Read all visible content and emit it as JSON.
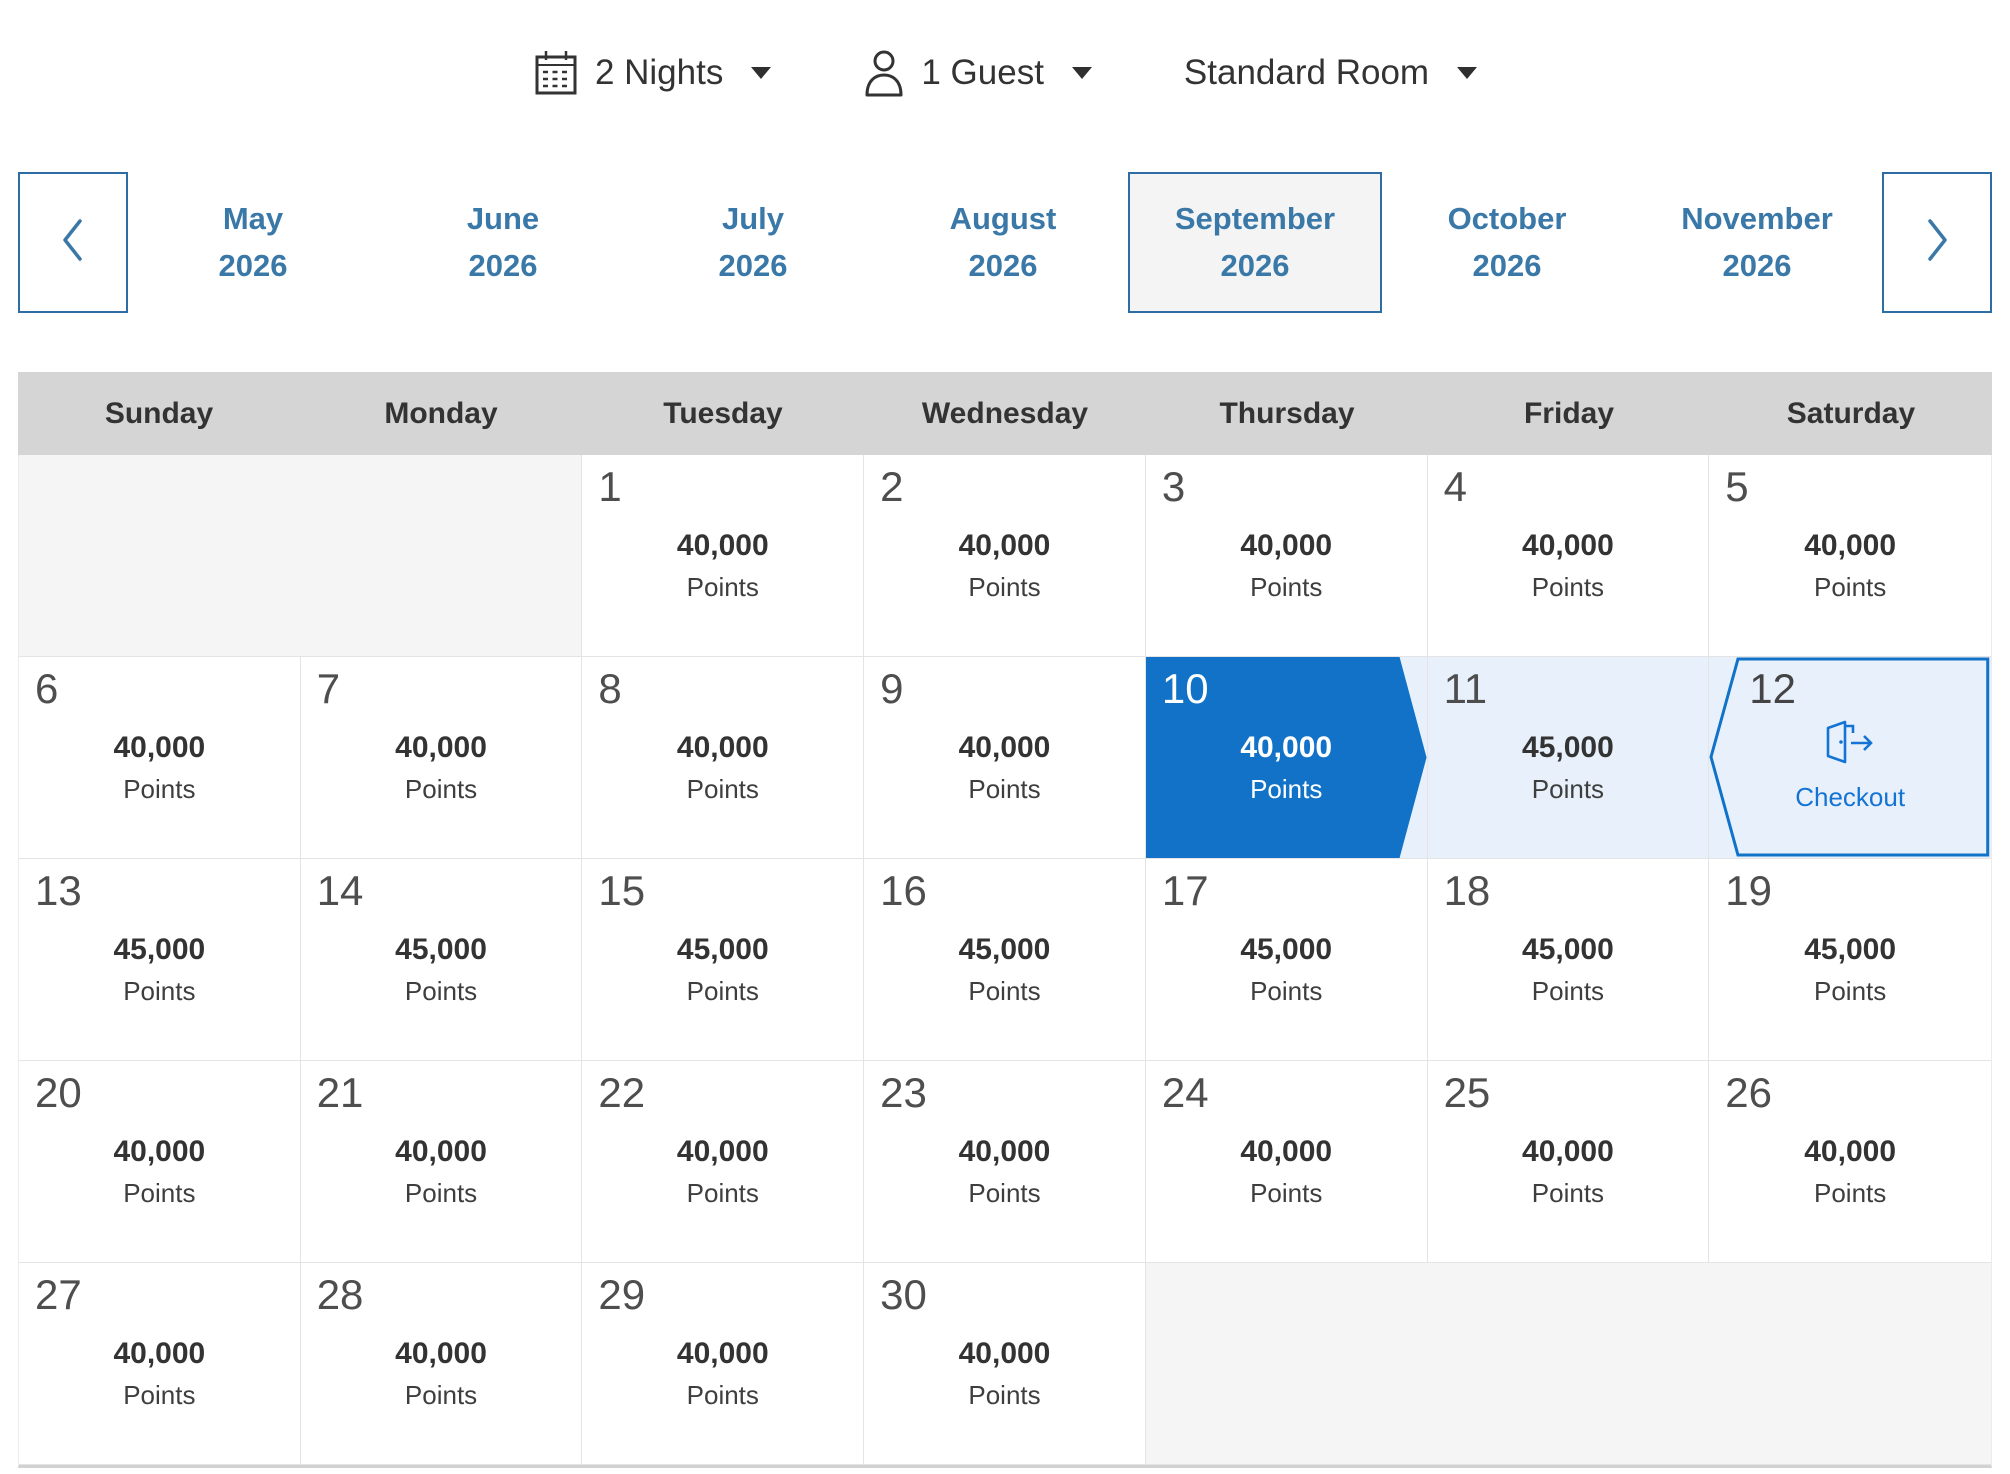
{
  "topbar": {
    "nights": {
      "label": "2 Nights",
      "icon": "calendar-icon"
    },
    "guests": {
      "label": "1 Guest",
      "icon": "person-icon"
    },
    "room": {
      "label": "Standard Room"
    }
  },
  "month_nav": {
    "selected_index": 4,
    "months": [
      {
        "label": "May",
        "year": "2026"
      },
      {
        "label": "June",
        "year": "2026"
      },
      {
        "label": "July",
        "year": "2026"
      },
      {
        "label": "August",
        "year": "2026"
      },
      {
        "label": "September",
        "year": "2026"
      },
      {
        "label": "October",
        "year": "2026"
      },
      {
        "label": "November",
        "year": "2026"
      }
    ]
  },
  "calendar": {
    "day_headers": [
      "Sunday",
      "Monday",
      "Tuesday",
      "Wednesday",
      "Thursday",
      "Friday",
      "Saturday"
    ],
    "points_label": "Points",
    "checkout_label": "Checkout",
    "grid": [
      {
        "type": "empty",
        "span": 2
      },
      {
        "type": "day",
        "date": "1",
        "points": "40,000"
      },
      {
        "type": "day",
        "date": "2",
        "points": "40,000"
      },
      {
        "type": "day",
        "date": "3",
        "points": "40,000"
      },
      {
        "type": "day",
        "date": "4",
        "points": "40,000"
      },
      {
        "type": "day",
        "date": "5",
        "points": "40,000"
      },
      {
        "type": "day",
        "date": "6",
        "points": "40,000"
      },
      {
        "type": "day",
        "date": "7",
        "points": "40,000"
      },
      {
        "type": "day",
        "date": "8",
        "points": "40,000"
      },
      {
        "type": "day",
        "date": "9",
        "points": "40,000"
      },
      {
        "type": "day",
        "date": "10",
        "points": "40,000",
        "state": "checkin"
      },
      {
        "type": "day",
        "date": "11",
        "points": "45,000",
        "state": "range"
      },
      {
        "type": "checkout",
        "date": "12"
      },
      {
        "type": "day",
        "date": "13",
        "points": "45,000"
      },
      {
        "type": "day",
        "date": "14",
        "points": "45,000"
      },
      {
        "type": "day",
        "date": "15",
        "points": "45,000"
      },
      {
        "type": "day",
        "date": "16",
        "points": "45,000"
      },
      {
        "type": "day",
        "date": "17",
        "points": "45,000"
      },
      {
        "type": "day",
        "date": "18",
        "points": "45,000"
      },
      {
        "type": "day",
        "date": "19",
        "points": "45,000"
      },
      {
        "type": "day",
        "date": "20",
        "points": "40,000"
      },
      {
        "type": "day",
        "date": "21",
        "points": "40,000"
      },
      {
        "type": "day",
        "date": "22",
        "points": "40,000"
      },
      {
        "type": "day",
        "date": "23",
        "points": "40,000"
      },
      {
        "type": "day",
        "date": "24",
        "points": "40,000"
      },
      {
        "type": "day",
        "date": "25",
        "points": "40,000"
      },
      {
        "type": "day",
        "date": "26",
        "points": "40,000"
      },
      {
        "type": "day",
        "date": "27",
        "points": "40,000"
      },
      {
        "type": "day",
        "date": "28",
        "points": "40,000"
      },
      {
        "type": "day",
        "date": "29",
        "points": "40,000"
      },
      {
        "type": "day",
        "date": "30",
        "points": "40,000"
      },
      {
        "type": "empty",
        "span": 3
      }
    ]
  },
  "colors": {
    "selected_blue": "#1172c8",
    "range_background": "#e8f1fb",
    "nav_text_blue": "#3a78a8",
    "nav_border_blue": "#2e6da4",
    "checkout_blue": "#1474d4",
    "header_gray": "#d5d5d5",
    "empty_cell_gray": "#f5f5f5"
  }
}
